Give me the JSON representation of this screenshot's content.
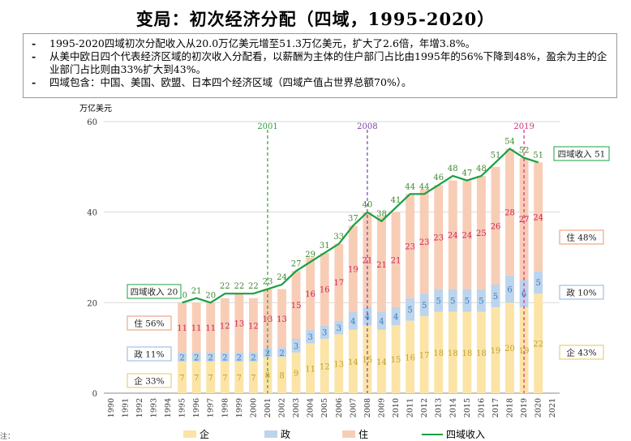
{
  "title": "变局：初次经济分配（四域，1995-2020）",
  "notes": [
    "1995-2020四域初次分配收入从20.0万亿美元增至51.3万亿美元，扩大了2.6倍，年增3.8%。",
    "从美中欧日四个代表经济区域的初次收入分配看，以薪酬为主体的住户部门占比由1995年的56%下降到48%，盈余为主的企业部门占比则由33%扩大到43%。",
    "四域包含：中国、美国、欧盟、日本四个经济区域（四域产值占世界总额70%）。"
  ],
  "bullet": "-",
  "source_left": "注：",
  "source_right": "",
  "chart_data": {
    "type": "bar",
    "subtype": "stacked bar + line",
    "unit": "万亿美元",
    "ylim": [
      0,
      60
    ],
    "yticks": [
      0,
      20,
      40,
      60
    ],
    "categories": [
      "1990",
      "1991",
      "1992",
      "1993",
      "1994",
      "1995",
      "1996",
      "1997",
      "1998",
      "1999",
      "2000",
      "2001",
      "2002",
      "2003",
      "2004",
      "2005",
      "2006",
      "2007",
      "2008",
      "2009",
      "2010",
      "2011",
      "2012",
      "2013",
      "2014",
      "2015",
      "2016",
      "2017",
      "2018",
      "2019",
      "2020",
      "2021"
    ],
    "series": [
      {
        "name": "企",
        "color": "#fbe4a6",
        "label_color": "#c6a02a",
        "values": [
          null,
          null,
          null,
          null,
          null,
          7,
          7,
          7,
          7,
          7,
          7,
          8,
          8,
          9,
          11,
          12,
          13,
          14,
          15,
          14,
          15,
          16,
          17,
          18,
          18,
          18,
          18,
          19,
          20,
          19,
          22,
          null
        ]
      },
      {
        "name": "政",
        "color": "#bcd4ec",
        "label_color": "#3a7cc0",
        "values": [
          null,
          null,
          null,
          null,
          null,
          2,
          2,
          2,
          2,
          2,
          2,
          2,
          2,
          3,
          3,
          3,
          3,
          4,
          4,
          4,
          4,
          5,
          5,
          5,
          5,
          5,
          5,
          5,
          6,
          6,
          5,
          null
        ]
      },
      {
        "name": "住",
        "color": "#f8cdb6",
        "label_color": "#d21f55",
        "values": [
          null,
          null,
          null,
          null,
          null,
          11,
          11,
          11,
          12,
          13,
          12,
          13,
          13,
          15,
          16,
          16,
          17,
          19,
          21,
          21,
          21,
          23,
          23,
          23,
          24,
          24,
          25,
          26,
          28,
          27,
          24,
          null
        ]
      },
      {
        "name": "四域收入",
        "type": "line",
        "color": "#1aa041",
        "label_color": "#3d8a2e",
        "values": [
          null,
          null,
          null,
          null,
          null,
          20,
          21,
          20,
          22,
          22,
          22,
          23,
          24,
          27,
          29,
          31,
          33,
          37,
          40,
          38,
          41,
          44,
          44,
          46,
          48,
          47,
          48,
          51,
          54,
          52,
          51,
          null
        ]
      }
    ],
    "vlines": [
      {
        "x": "2001",
        "label": "2001",
        "color": "#2e9e3a"
      },
      {
        "x": "2008",
        "label": "2008",
        "color": "#7b3fa8"
      },
      {
        "x": "2019",
        "label": "2019",
        "color": "#d0307a"
      }
    ],
    "callouts": [
      {
        "text": "四域收入 20",
        "color": "#1aa041"
      },
      {
        "text": "住 56%",
        "color": "#e8956c"
      },
      {
        "text": "政 11%",
        "color": "#8fb6de"
      },
      {
        "text": "企 33%",
        "color": "#e8c35c"
      },
      {
        "text": "四域收入 51",
        "color": "#1aa041"
      },
      {
        "text": "住 48%",
        "color": "#e8956c"
      },
      {
        "text": "政 10%",
        "color": "#8fb6de"
      },
      {
        "text": "企 43%",
        "color": "#e8c35c"
      }
    ],
    "grid": true,
    "legend_position": "bottom"
  }
}
